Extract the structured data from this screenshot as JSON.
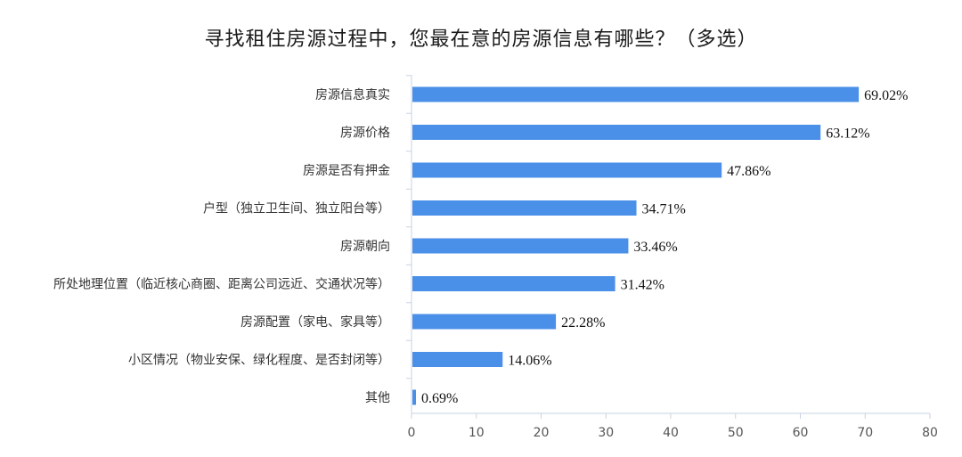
{
  "chart_data": {
    "type": "bar",
    "orientation": "horizontal",
    "title": "寻找租住房源过程中，您最在意的房源信息有哪些？（多选）",
    "xlabel": "",
    "ylabel": "",
    "xlim": [
      0,
      80
    ],
    "x_ticks": [
      "0",
      "10",
      "20",
      "30",
      "40",
      "50",
      "60",
      "70",
      "80"
    ],
    "grid": false,
    "bar_color": "#4a8fe8",
    "categories": [
      "房源信息真实",
      "房源价格",
      "房源是否有押金",
      "户型（独立卫生间、独立阳台等）",
      "房源朝向",
      "所处地理位置（临近核心商圈、距离公司远近、交通状况等）",
      "房源配置（家电、家具等）",
      "小区情况（物业安保、绿化程度、是否封闭等）",
      "其他"
    ],
    "values": [
      69.02,
      63.12,
      47.86,
      34.71,
      33.46,
      31.42,
      22.28,
      14.06,
      0.69
    ],
    "value_labels": [
      "69.02%",
      "63.12%",
      "47.86%",
      "34.71%",
      "33.46%",
      "31.42%",
      "22.28%",
      "14.06%",
      "0.69%"
    ]
  }
}
